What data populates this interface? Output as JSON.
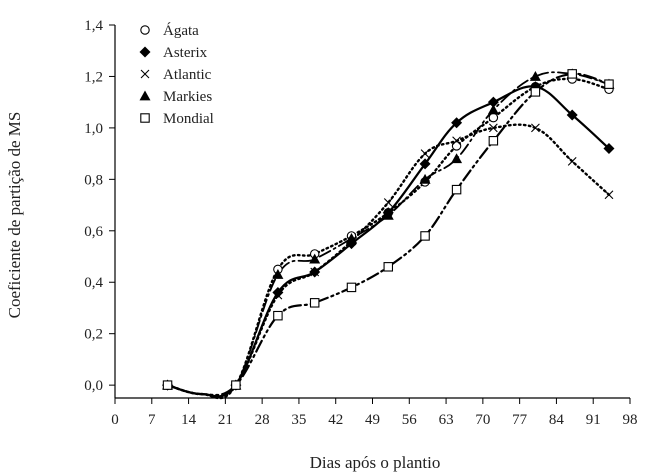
{
  "chart_data": {
    "type": "line",
    "title": "",
    "xlabel": "Dias após o plantio",
    "ylabel": "Coeficiente de partição de MS",
    "xlim": [
      0,
      98
    ],
    "ylim": [
      -0.05,
      1.4
    ],
    "xticks": [
      0,
      7,
      14,
      21,
      28,
      35,
      42,
      49,
      56,
      63,
      70,
      77,
      84,
      91,
      98
    ],
    "xtick_labels": [
      "0",
      "7",
      "14",
      "21",
      "28",
      "35",
      "42",
      "49",
      "56",
      "63",
      "70",
      "77",
      "84",
      "91",
      "98"
    ],
    "yticks": [
      0.0,
      0.2,
      0.4,
      0.6,
      0.8,
      1.0,
      1.2,
      1.4
    ],
    "ytick_labels": [
      "0,0",
      "0,2",
      "0,4",
      "0,6",
      "0,8",
      "1,0",
      "1,2",
      "1,4"
    ],
    "grid": false,
    "legend": "top-left",
    "series": [
      {
        "name": "Ágata",
        "marker": "circle-open",
        "line": "dotted",
        "x": [
          10,
          23,
          31,
          38,
          45,
          52,
          59,
          65,
          72,
          80,
          87,
          94
        ],
        "y": [
          0.0,
          0.0,
          0.45,
          0.51,
          0.58,
          0.67,
          0.79,
          0.93,
          1.04,
          1.16,
          1.19,
          1.15
        ]
      },
      {
        "name": "Asterix",
        "marker": "diamond-filled",
        "line": "solid",
        "x": [
          10,
          23,
          31,
          38,
          45,
          52,
          59,
          65,
          72,
          80,
          87,
          94
        ],
        "y": [
          0.0,
          0.0,
          0.36,
          0.44,
          0.55,
          0.67,
          0.86,
          1.02,
          1.1,
          1.16,
          1.05,
          0.92
        ]
      },
      {
        "name": "Atlantic",
        "marker": "cross",
        "line": "dotted",
        "x": [
          10,
          23,
          31,
          38,
          45,
          52,
          59,
          65,
          72,
          80,
          87,
          94
        ],
        "y": [
          0.0,
          0.0,
          0.35,
          0.44,
          0.56,
          0.71,
          0.9,
          0.95,
          1.0,
          1.0,
          0.87,
          0.74
        ]
      },
      {
        "name": "Markies",
        "marker": "triangle-filled",
        "line": "dash-dot",
        "x": [
          10,
          23,
          31,
          38,
          45,
          52,
          59,
          65,
          72,
          80,
          87,
          94
        ],
        "y": [
          0.0,
          0.0,
          0.43,
          0.49,
          0.57,
          0.66,
          0.8,
          0.88,
          1.07,
          1.2,
          1.21,
          1.17
        ]
      },
      {
        "name": "Mondial",
        "marker": "square-open",
        "line": "dash-dot-dot",
        "x": [
          10,
          23,
          31,
          38,
          45,
          52,
          59,
          65,
          72,
          80,
          87,
          94
        ],
        "y": [
          0.0,
          0.0,
          0.27,
          0.32,
          0.38,
          0.46,
          0.58,
          0.76,
          0.95,
          1.14,
          1.21,
          1.17
        ]
      }
    ]
  }
}
